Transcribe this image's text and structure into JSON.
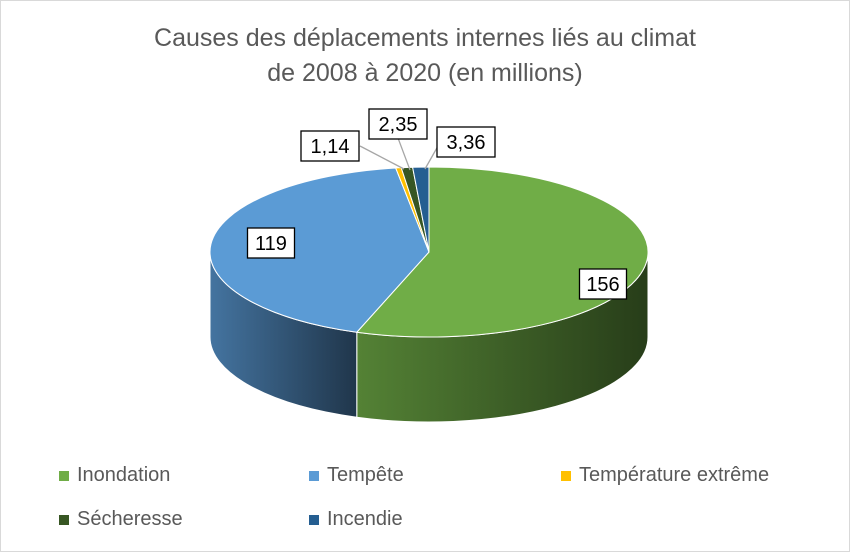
{
  "chart_data": {
    "type": "pie",
    "title": "Causes des déplacements internes liés au climat",
    "subtitle": "de 2008 à 2020  (en millions)",
    "slices": [
      {
        "label": "Inondation",
        "value": 156,
        "data_label": "156",
        "color": "#70ad47"
      },
      {
        "label": "Tempête",
        "value": 119,
        "data_label": "119",
        "color": "#5b9bd5"
      },
      {
        "label": "Température extrême",
        "value": 1.14,
        "data_label": "1,14",
        "color": "#ffc000"
      },
      {
        "label": "Sécheresse",
        "value": 2.35,
        "data_label": "2,35",
        "color": "#375623"
      },
      {
        "label": "Incendie",
        "value": 3.36,
        "data_label": "3,36",
        "color": "#255e91"
      }
    ],
    "legend_position": "bottom",
    "style": "3d"
  }
}
